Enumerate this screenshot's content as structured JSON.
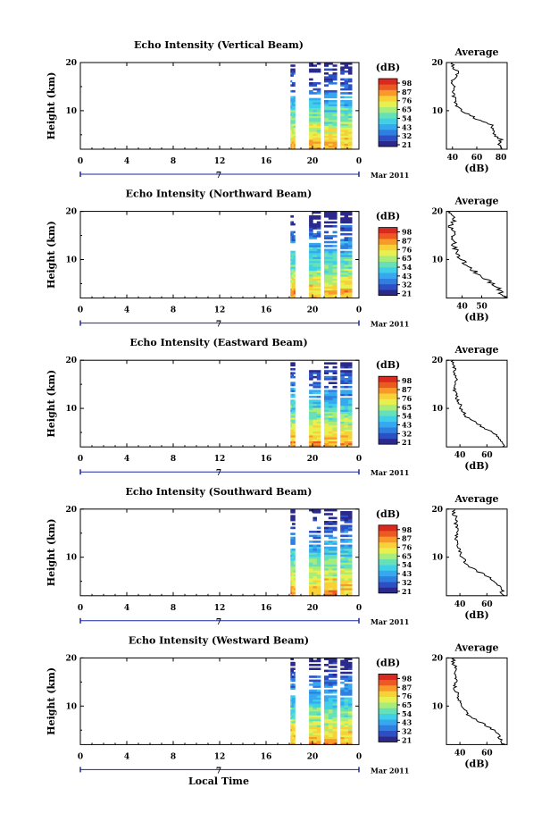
{
  "date_label": "Mar 2011",
  "day_label": "7",
  "xlabel_bottom": "Local Time",
  "avg_title": "Average",
  "avg_xlabel": "(dB)",
  "ylabel": "Height (km)",
  "cb_unit": "(dB)",
  "cb_ticks": [
    "98",
    "87",
    "76",
    "65",
    "54",
    "43",
    "32",
    "21"
  ],
  "cb_colors": [
    "#2b2a8c",
    "#2d4fc4",
    "#2f7fe0",
    "#36a8f0",
    "#3fd0e8",
    "#66e0b8",
    "#a8ec7a",
    "#e8f050",
    "#f8d038",
    "#f89a2a",
    "#ec5a22",
    "#d82a1e"
  ],
  "colors": {
    "beam_top": "#3a78d8",
    "beam_mid": "#40c8f0",
    "beam_low": "#e0ec40",
    "axis": "#000000",
    "timeline": "#1a2aa0"
  },
  "chart_data": [
    {
      "type": "heatmap",
      "title": "Echo Intensity (Vertical Beam)",
      "ylabel": "Height (km)",
      "x_ticks": [
        "0",
        "4",
        "8",
        "12",
        "16",
        "20",
        "0"
      ],
      "y_ticks": [
        "20",
        "10"
      ],
      "xlim": [
        0,
        24
      ],
      "ylim": [
        2,
        20
      ],
      "data_segments": [
        [
          18.1,
          18.5
        ],
        [
          19.7,
          20.7
        ],
        [
          21.0,
          22.1
        ],
        [
          22.4,
          23.4
        ]
      ],
      "average": {
        "title": "Average",
        "xlabel": "(dB)",
        "x_ticks": [
          "40",
          "60",
          "80"
        ],
        "xlim": [
          35,
          85
        ],
        "heights": [
          2,
          3,
          4,
          5,
          6,
          7,
          8,
          9,
          10,
          11,
          12,
          13,
          14,
          15,
          16,
          17,
          18,
          19,
          20
        ],
        "values": [
          82,
          79,
          80,
          74,
          73,
          72,
          62,
          55,
          48,
          43,
          42,
          41,
          41,
          41,
          40,
          42,
          46,
          40,
          40
        ]
      }
    },
    {
      "type": "heatmap",
      "title": "Echo Intensity (Northward Beam)",
      "ylabel": "Height (km)",
      "x_ticks": [
        "0",
        "4",
        "8",
        "12",
        "16",
        "20",
        "0"
      ],
      "y_ticks": [
        "20",
        "10"
      ],
      "xlim": [
        0,
        24
      ],
      "ylim": [
        2,
        20
      ],
      "data_segments": [
        [
          18.1,
          18.5
        ],
        [
          19.7,
          20.7
        ],
        [
          21.0,
          22.1
        ],
        [
          22.4,
          23.4
        ]
      ],
      "average": {
        "title": "Average",
        "xlabel": "(dB)",
        "x_ticks": [
          "40",
          "50"
        ],
        "xlim": [
          32,
          63
        ],
        "heights": [
          2,
          3,
          4,
          5,
          6,
          7,
          8,
          9,
          10,
          11,
          12,
          13,
          14,
          15,
          16,
          17,
          18,
          19,
          20
        ],
        "values": [
          62,
          60,
          59,
          55,
          52,
          48,
          45,
          42,
          40,
          38,
          37,
          36,
          35,
          35,
          36,
          34,
          36,
          35,
          34
        ]
      }
    },
    {
      "type": "heatmap",
      "title": "Echo Intensity (Eastward Beam)",
      "ylabel": "Height (km)",
      "x_ticks": [
        "0",
        "4",
        "8",
        "12",
        "16",
        "20",
        "0"
      ],
      "y_ticks": [
        "20",
        "10"
      ],
      "xlim": [
        0,
        24
      ],
      "ylim": [
        2,
        20
      ],
      "data_segments": [
        [
          18.1,
          18.5
        ],
        [
          19.7,
          20.7
        ],
        [
          21.0,
          22.1
        ],
        [
          22.4,
          23.4
        ]
      ],
      "average": {
        "title": "Average",
        "xlabel": "(dB)",
        "x_ticks": [
          "40",
          "60"
        ],
        "xlim": [
          30,
          75
        ],
        "heights": [
          2,
          3,
          4,
          5,
          6,
          7,
          8,
          9,
          10,
          11,
          12,
          13,
          14,
          15,
          16,
          17,
          18,
          19,
          20
        ],
        "values": [
          72,
          70,
          68,
          64,
          58,
          52,
          46,
          43,
          41,
          40,
          38,
          37,
          36,
          36,
          38,
          35,
          37,
          34,
          35
        ]
      }
    },
    {
      "type": "heatmap",
      "title": "Echo Intensity (Southward Beam)",
      "ylabel": "Height (km)",
      "x_ticks": [
        "0",
        "4",
        "8",
        "12",
        "16",
        "20",
        "0"
      ],
      "y_ticks": [
        "20",
        "10"
      ],
      "xlim": [
        0,
        24
      ],
      "ylim": [
        2,
        20
      ],
      "data_segments": [
        [
          18.1,
          18.5
        ],
        [
          19.7,
          20.7
        ],
        [
          21.0,
          22.1
        ],
        [
          22.4,
          23.4
        ]
      ],
      "average": {
        "title": "Average",
        "xlabel": "(dB)",
        "x_ticks": [
          "40",
          "60"
        ],
        "xlim": [
          30,
          75
        ],
        "heights": [
          2,
          3,
          4,
          5,
          6,
          7,
          8,
          9,
          10,
          11,
          12,
          13,
          14,
          15,
          16,
          17,
          18,
          19,
          20
        ],
        "values": [
          72,
          71,
          69,
          66,
          60,
          54,
          48,
          44,
          42,
          40,
          39,
          38,
          37,
          37,
          39,
          36,
          38,
          35,
          36
        ]
      }
    },
    {
      "type": "heatmap",
      "title": "Echo Intensity (Westward Beam)",
      "ylabel": "Height (km)",
      "x_ticks": [
        "0",
        "4",
        "8",
        "12",
        "16",
        "20",
        "0"
      ],
      "y_ticks": [
        "20",
        "10"
      ],
      "xlim": [
        0,
        24
      ],
      "ylim": [
        2,
        20
      ],
      "data_segments": [
        [
          18.1,
          18.5
        ],
        [
          19.7,
          20.7
        ],
        [
          21.0,
          22.1
        ],
        [
          22.4,
          23.4
        ]
      ],
      "average": {
        "title": "Average",
        "xlabel": "(dB)",
        "x_ticks": [
          "40",
          "60"
        ],
        "xlim": [
          30,
          75
        ],
        "heights": [
          2,
          3,
          4,
          5,
          6,
          7,
          8,
          9,
          10,
          11,
          12,
          13,
          14,
          15,
          16,
          17,
          18,
          19,
          20
        ],
        "values": [
          73,
          70,
          68,
          65,
          59,
          53,
          47,
          44,
          42,
          40,
          39,
          37,
          36,
          37,
          38,
          35,
          37,
          35,
          36
        ]
      }
    }
  ]
}
